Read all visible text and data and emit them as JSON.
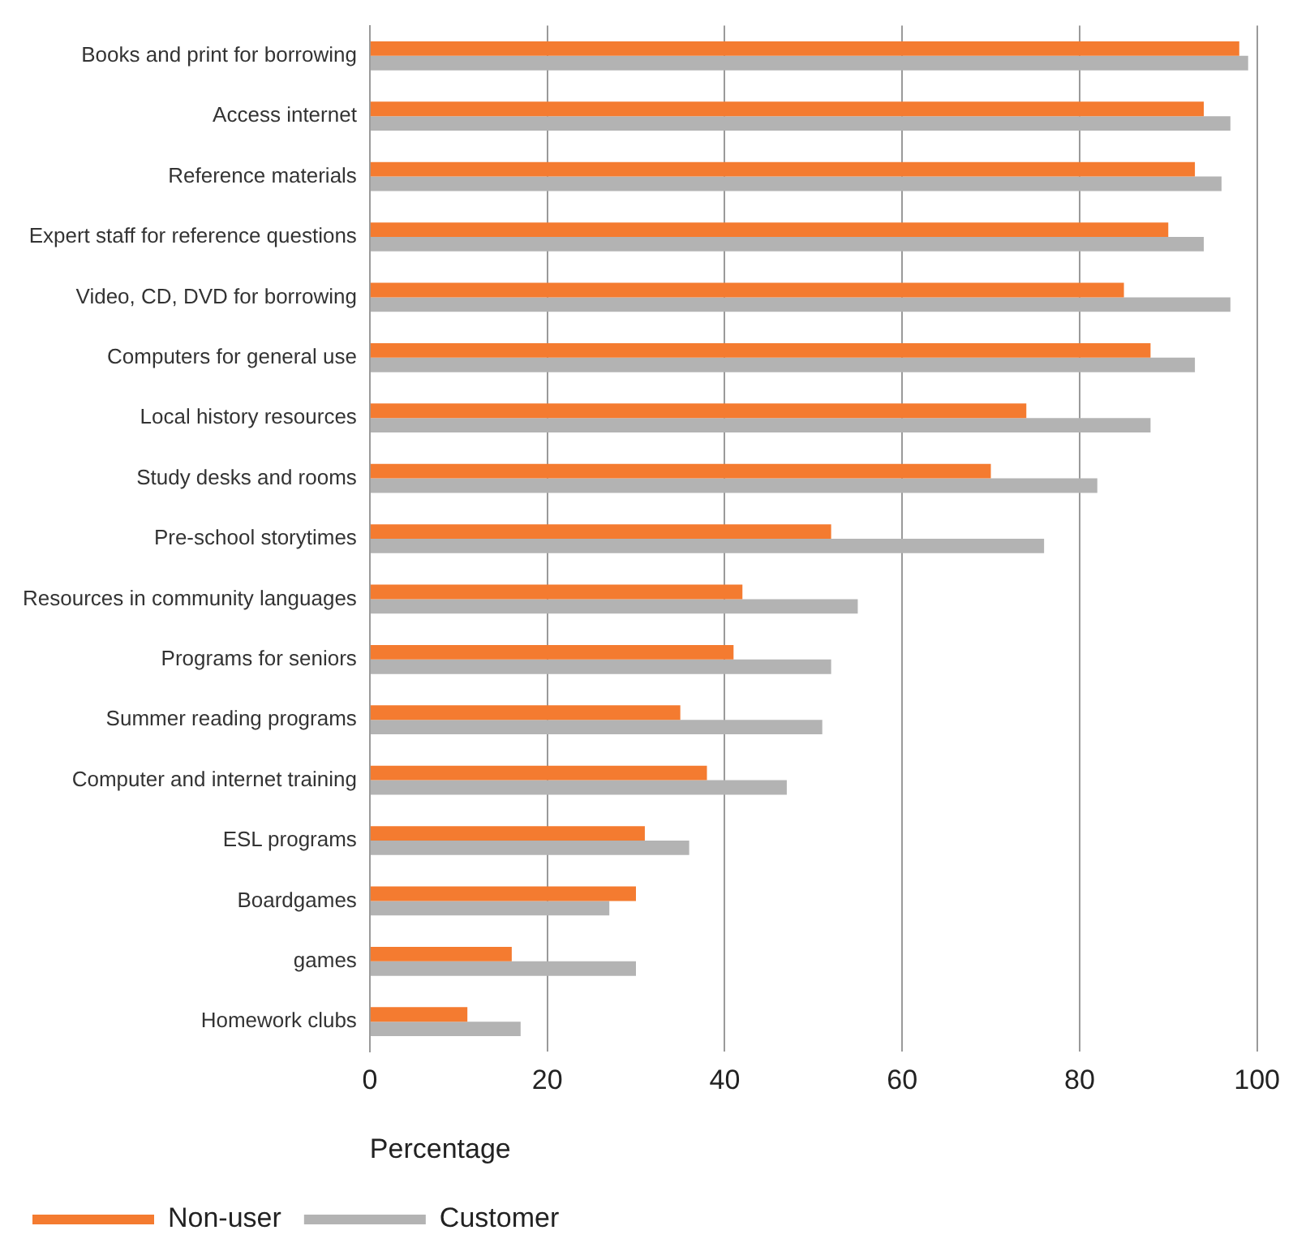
{
  "chart_data": {
    "type": "bar",
    "orientation": "horizontal",
    "xlabel": "Percentage",
    "categories": [
      "Books and print for borrowing",
      "Access internet",
      "Reference materials",
      "Expert staff for reference questions",
      "Video, CD, DVD for borrowing",
      "Computers for general use",
      "Local history resources",
      "Study desks and rooms",
      "Pre-school storytimes",
      "Resources in community languages",
      "Programs for seniors",
      "Summer reading programs",
      "Computer and internet training",
      "ESL programs",
      "Boardgames",
      "games",
      "Homework clubs"
    ],
    "series": [
      {
        "name": "Non-user",
        "color": "#f47b30",
        "values": [
          98,
          94,
          93,
          90,
          85,
          88,
          74,
          70,
          52,
          42,
          41,
          35,
          38,
          31,
          30,
          16,
          11
        ]
      },
      {
        "name": "Customer",
        "color": "#b3b3b3",
        "values": [
          99,
          97,
          96,
          94,
          97,
          93,
          88,
          82,
          76,
          55,
          52,
          51,
          47,
          36,
          27,
          30,
          17
        ]
      }
    ],
    "xlim": [
      0,
      100
    ],
    "xticks": [
      0,
      20,
      40,
      60,
      80,
      100
    ],
    "grid": "x",
    "legend": "bottom left"
  }
}
